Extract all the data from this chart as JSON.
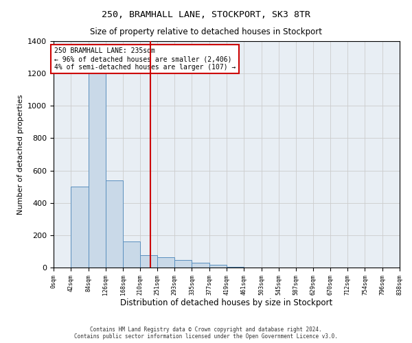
{
  "title1": "250, BRAMHALL LANE, STOCKPORT, SK3 8TR",
  "title2": "Size of property relative to detached houses in Stockport",
  "xlabel": "Distribution of detached houses by size in Stockport",
  "ylabel": "Number of detached properties",
  "annotation_line1": "250 BRAMHALL LANE: 235sqm",
  "annotation_line2": "← 96% of detached houses are smaller (2,406)",
  "annotation_line3": "4% of semi-detached houses are larger (107) →",
  "bar_left_edges": [
    0,
    42,
    84,
    126,
    168,
    210,
    251,
    293,
    335,
    377,
    419,
    461,
    503,
    545,
    587,
    629,
    670,
    712,
    754,
    796
  ],
  "bar_widths": [
    42,
    42,
    42,
    42,
    42,
    41,
    42,
    42,
    42,
    42,
    42,
    42,
    42,
    42,
    42,
    41,
    42,
    42,
    42,
    42
  ],
  "bar_heights": [
    0,
    500,
    1250,
    540,
    160,
    75,
    65,
    45,
    30,
    15,
    5,
    2,
    0,
    0,
    0,
    0,
    0,
    0,
    0,
    0
  ],
  "tick_labels": [
    "0sqm",
    "42sqm",
    "84sqm",
    "126sqm",
    "168sqm",
    "210sqm",
    "251sqm",
    "293sqm",
    "335sqm",
    "377sqm",
    "419sqm",
    "461sqm",
    "503sqm",
    "545sqm",
    "587sqm",
    "629sqm",
    "670sqm",
    "712sqm",
    "754sqm",
    "796sqm",
    "838sqm"
  ],
  "bar_color": "#c9d9e8",
  "bar_edge_color": "#5a8fbe",
  "vline_color": "#cc0000",
  "vline_x": 235,
  "ylim": [
    0,
    1400
  ],
  "yticks": [
    0,
    200,
    400,
    600,
    800,
    1000,
    1200,
    1400
  ],
  "grid_color": "#cccccc",
  "bg_color": "#e8eef4",
  "box_color": "#cc0000",
  "footnote1": "Contains HM Land Registry data © Crown copyright and database right 2024.",
  "footnote2": "Contains public sector information licensed under the Open Government Licence v3.0."
}
